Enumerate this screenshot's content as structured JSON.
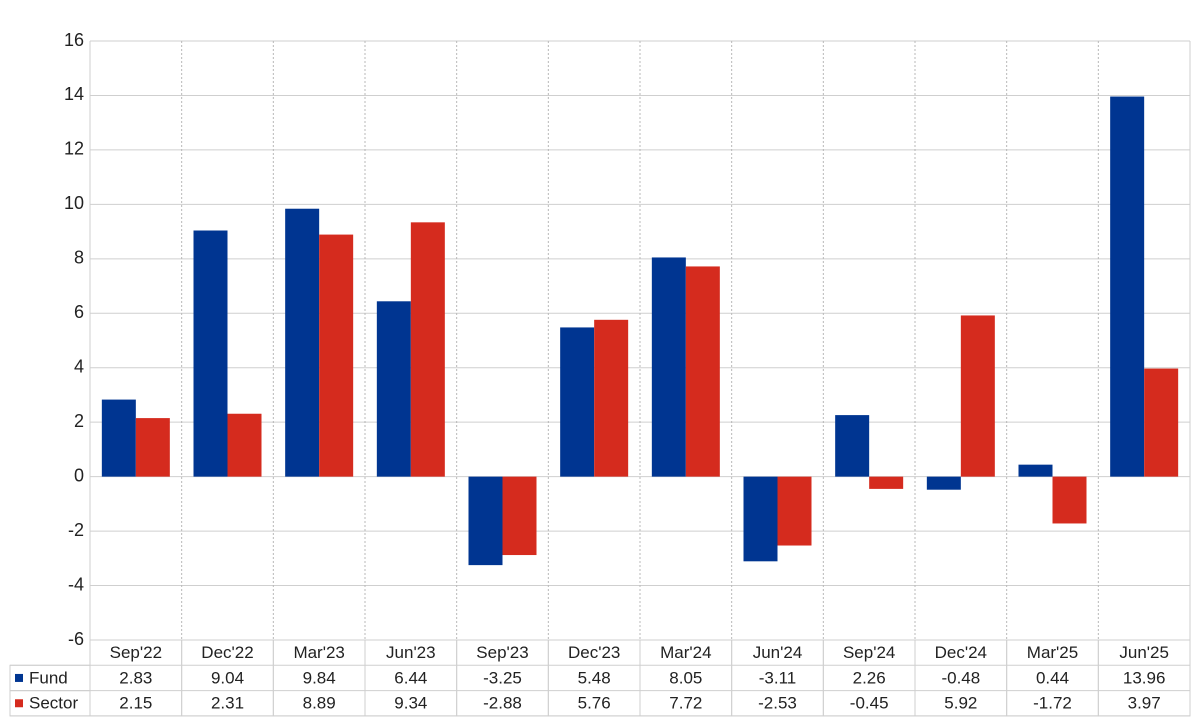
{
  "chart_data": {
    "type": "bar",
    "categories": [
      "Sep'22",
      "Dec'22",
      "Mar'23",
      "Jun'23",
      "Sep'23",
      "Dec'23",
      "Mar'24",
      "Jun'24",
      "Sep'24",
      "Dec'24",
      "Mar'25",
      "Jun'25"
    ],
    "series": [
      {
        "name": "Fund",
        "color": "#003591",
        "values": [
          2.83,
          9.04,
          9.84,
          6.44,
          -3.25,
          5.48,
          8.05,
          -3.11,
          2.26,
          -0.48,
          0.44,
          13.96
        ]
      },
      {
        "name": "Sector",
        "color": "#d52b1e",
        "values": [
          2.15,
          2.31,
          8.89,
          9.34,
          -2.88,
          5.76,
          7.72,
          -2.53,
          -0.45,
          5.92,
          -1.72,
          3.97
        ]
      }
    ],
    "ylim": [
      -6,
      16
    ],
    "yticks": [
      -6,
      -4,
      -2,
      0,
      2,
      4,
      6,
      8,
      10,
      12,
      14,
      16
    ],
    "grid": true,
    "negative_color": "#e00000"
  }
}
